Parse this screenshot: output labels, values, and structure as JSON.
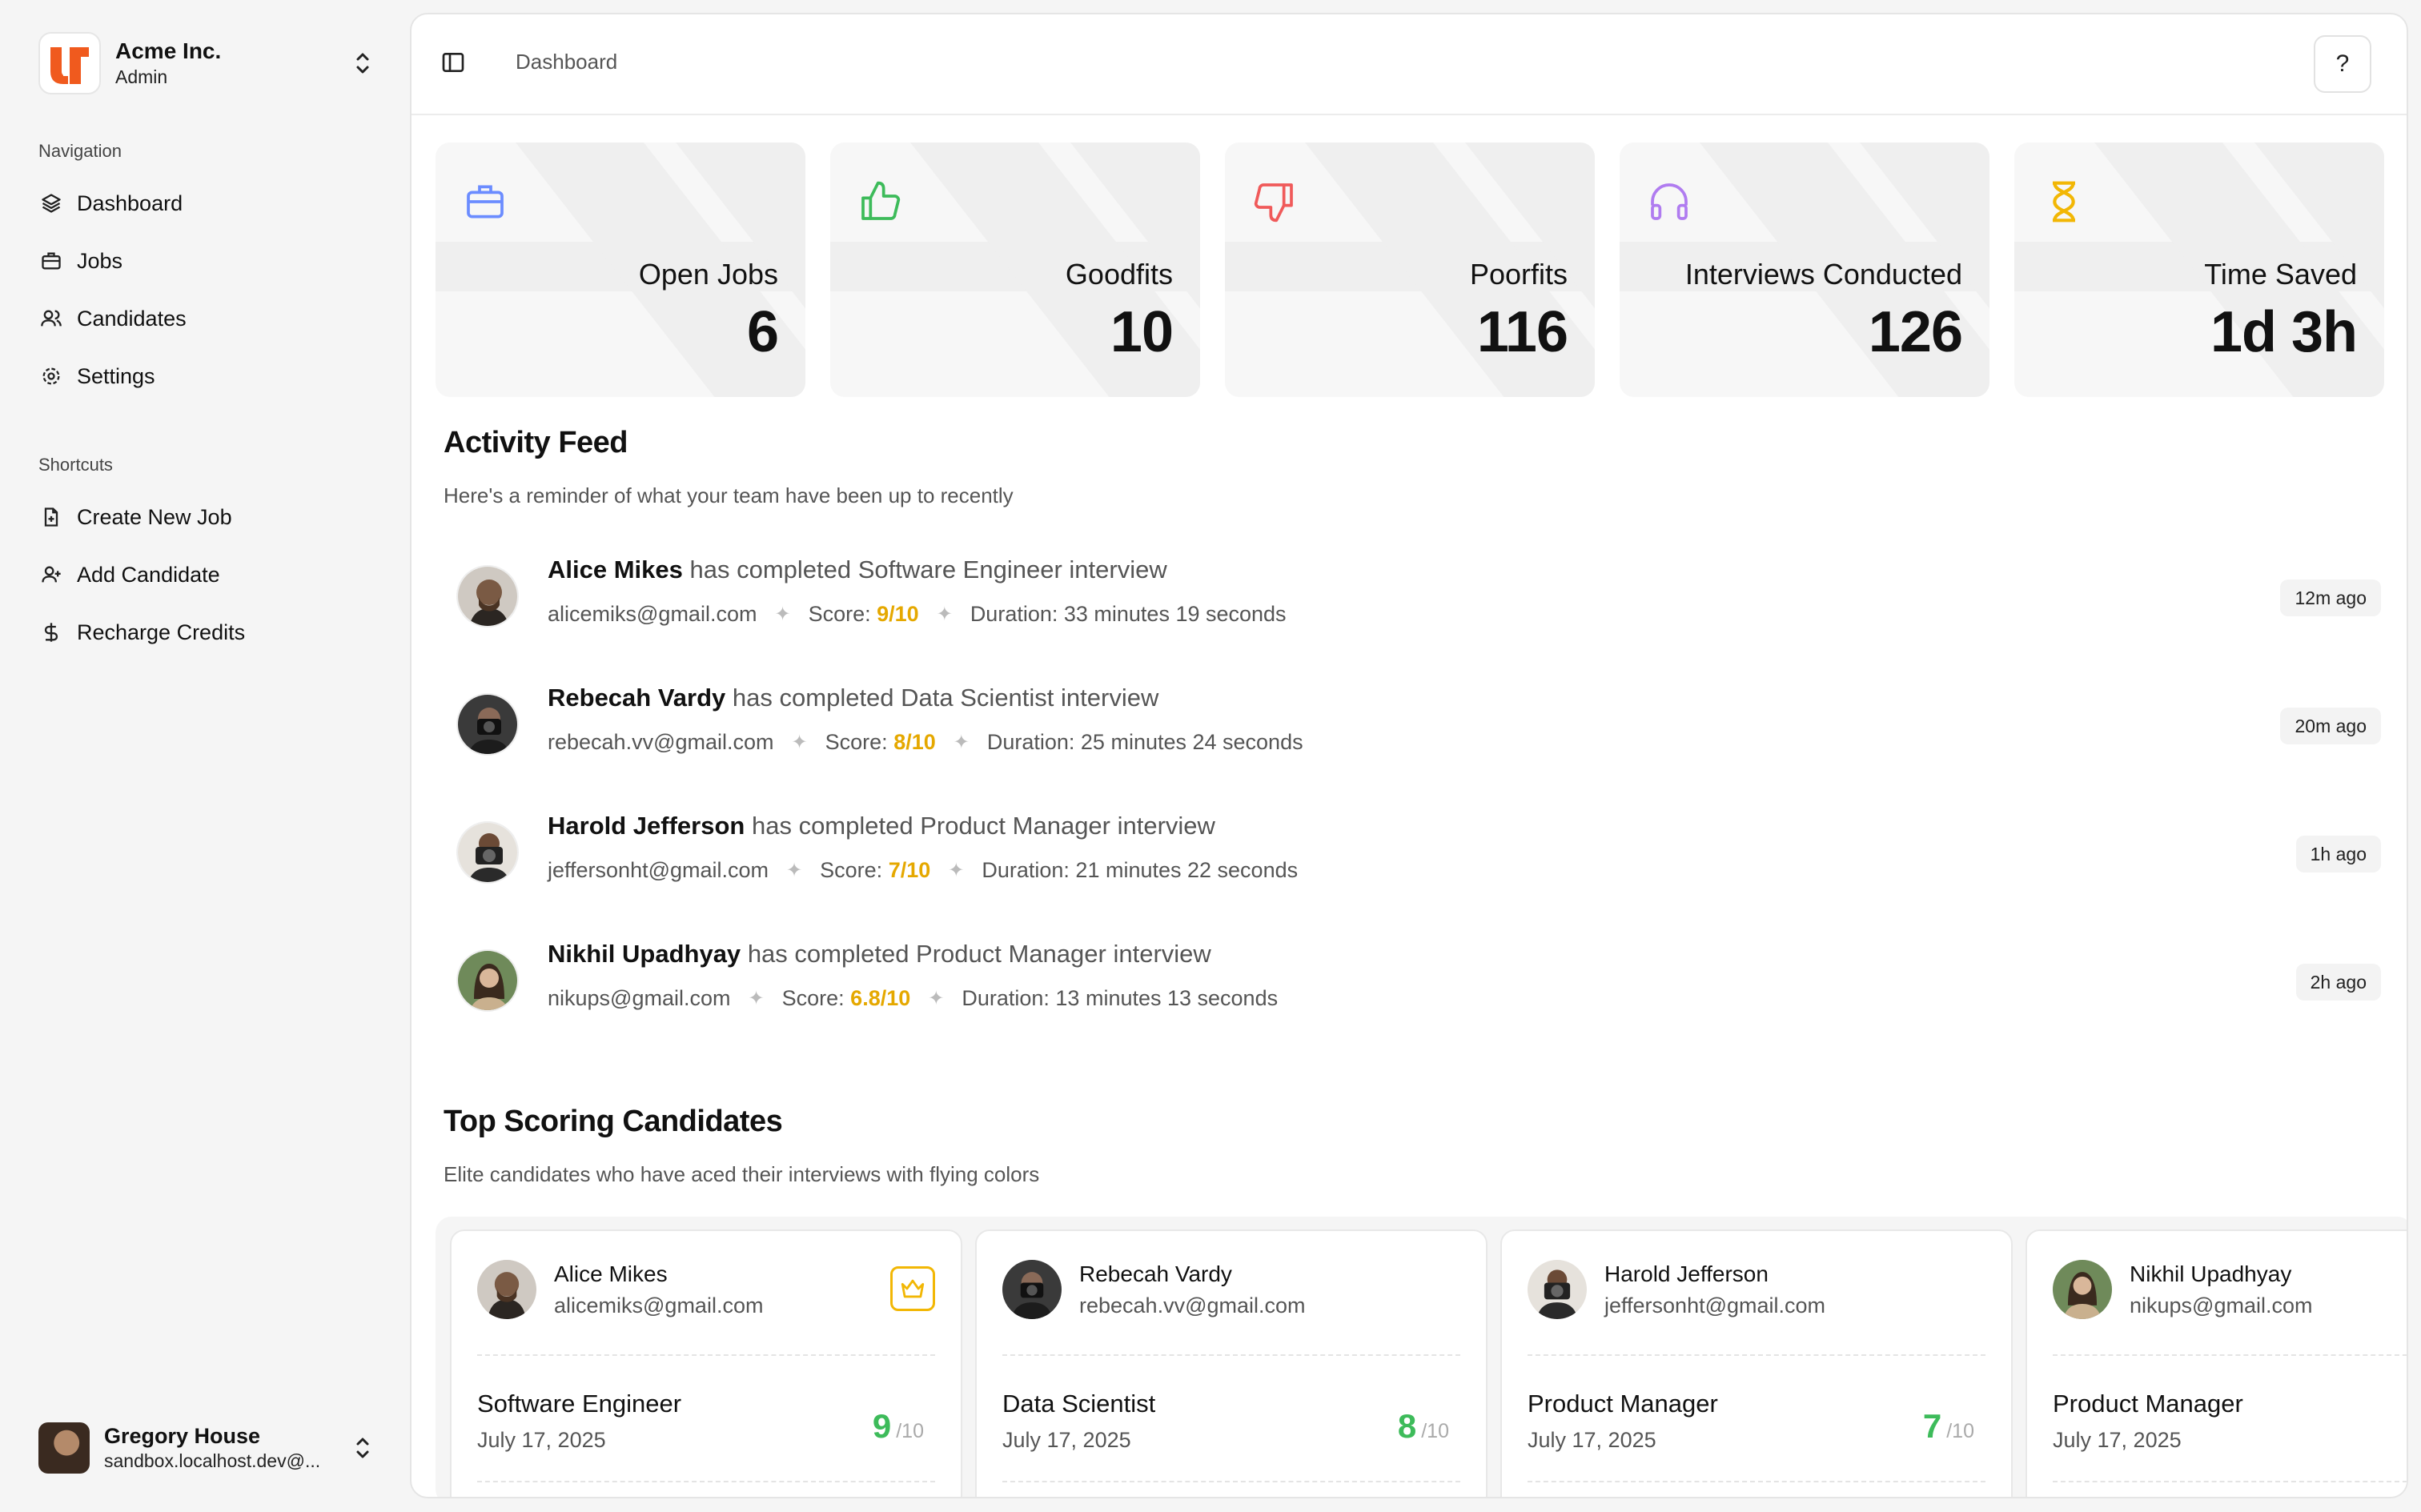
{
  "org": {
    "name": "Acme Inc.",
    "role": "Admin"
  },
  "navigation": {
    "title": "Navigation",
    "items": [
      {
        "label": "Dashboard",
        "icon": "layers-icon"
      },
      {
        "label": "Jobs",
        "icon": "briefcase-icon"
      },
      {
        "label": "Candidates",
        "icon": "users-icon"
      },
      {
        "label": "Settings",
        "icon": "gear-icon"
      }
    ]
  },
  "shortcuts": {
    "title": "Shortcuts",
    "items": [
      {
        "label": "Create New Job",
        "icon": "file-plus-icon"
      },
      {
        "label": "Add Candidate",
        "icon": "user-plus-icon"
      },
      {
        "label": "Recharge Credits",
        "icon": "dollar-icon"
      }
    ]
  },
  "user": {
    "name": "Gregory House",
    "email": "sandbox.localhost.dev@..."
  },
  "header": {
    "breadcrumb": "Dashboard",
    "help_label": "?"
  },
  "stats": [
    {
      "label": "Open Jobs",
      "value": "6",
      "icon": "briefcase-icon",
      "color": "#6b8cff"
    },
    {
      "label": "Goodfits",
      "value": "10",
      "icon": "thumbs-up-icon",
      "color": "#3dbb5a"
    },
    {
      "label": "Poorfits",
      "value": "116",
      "icon": "thumbs-down-icon",
      "color": "#f05a5a"
    },
    {
      "label": "Interviews Conducted",
      "value": "126",
      "icon": "headphones-icon",
      "color": "#b07cf0"
    },
    {
      "label": "Time Saved",
      "value": "1d 3h",
      "icon": "hourglass-icon",
      "color": "#f2b705"
    }
  ],
  "activity": {
    "title": "Activity Feed",
    "subtitle": "Here's a reminder of what your team have been up to recently",
    "items": [
      {
        "name": "Alice Mikes",
        "action": "has completed Software Engineer interview",
        "email": "alicemiks@gmail.com",
        "score_label": "Score:",
        "score": "9/10",
        "duration": "Duration: 33 minutes 19 seconds",
        "time": "12m ago"
      },
      {
        "name": "Rebecah Vardy",
        "action": "has completed Data Scientist interview",
        "email": "rebecah.vv@gmail.com",
        "score_label": "Score:",
        "score": "8/10",
        "duration": "Duration: 25 minutes 24 seconds",
        "time": "20m ago"
      },
      {
        "name": "Harold Jefferson",
        "action": "has completed Product Manager interview",
        "email": "jeffersonht@gmail.com",
        "score_label": "Score:",
        "score": "7/10",
        "duration": "Duration: 21 minutes 22 seconds",
        "time": "1h ago"
      },
      {
        "name": "Nikhil Upadhyay",
        "action": "has completed Product Manager interview",
        "email": "nikups@gmail.com",
        "score_label": "Score:",
        "score": "6.8/10",
        "duration": "Duration: 13 minutes 13 seconds",
        "time": "2h ago"
      }
    ]
  },
  "top": {
    "title": "Top Scoring Candidates",
    "subtitle": "Elite candidates who have aced their interviews with flying colors",
    "cards": [
      {
        "name": "Alice Mikes",
        "email": "alicemiks@gmail.com",
        "role": "Software Engineer",
        "date": "July 17, 2025",
        "score": "9",
        "score_max": "/10",
        "crown": true
      },
      {
        "name": "Rebecah Vardy",
        "email": "rebecah.vv@gmail.com",
        "role": "Data Scientist",
        "date": "July 17, 2025",
        "score": "8",
        "score_max": "/10"
      },
      {
        "name": "Harold Jefferson",
        "email": "jeffersonht@gmail.com",
        "role": "Product Manager",
        "date": "July 17, 2025",
        "score": "7",
        "score_max": "/10"
      },
      {
        "name": "Nikhil Upadhyay",
        "email": "nikups@gmail.com",
        "role": "Product Manager",
        "date": "July 17, 2025",
        "score": "",
        "score_max": ""
      }
    ]
  }
}
